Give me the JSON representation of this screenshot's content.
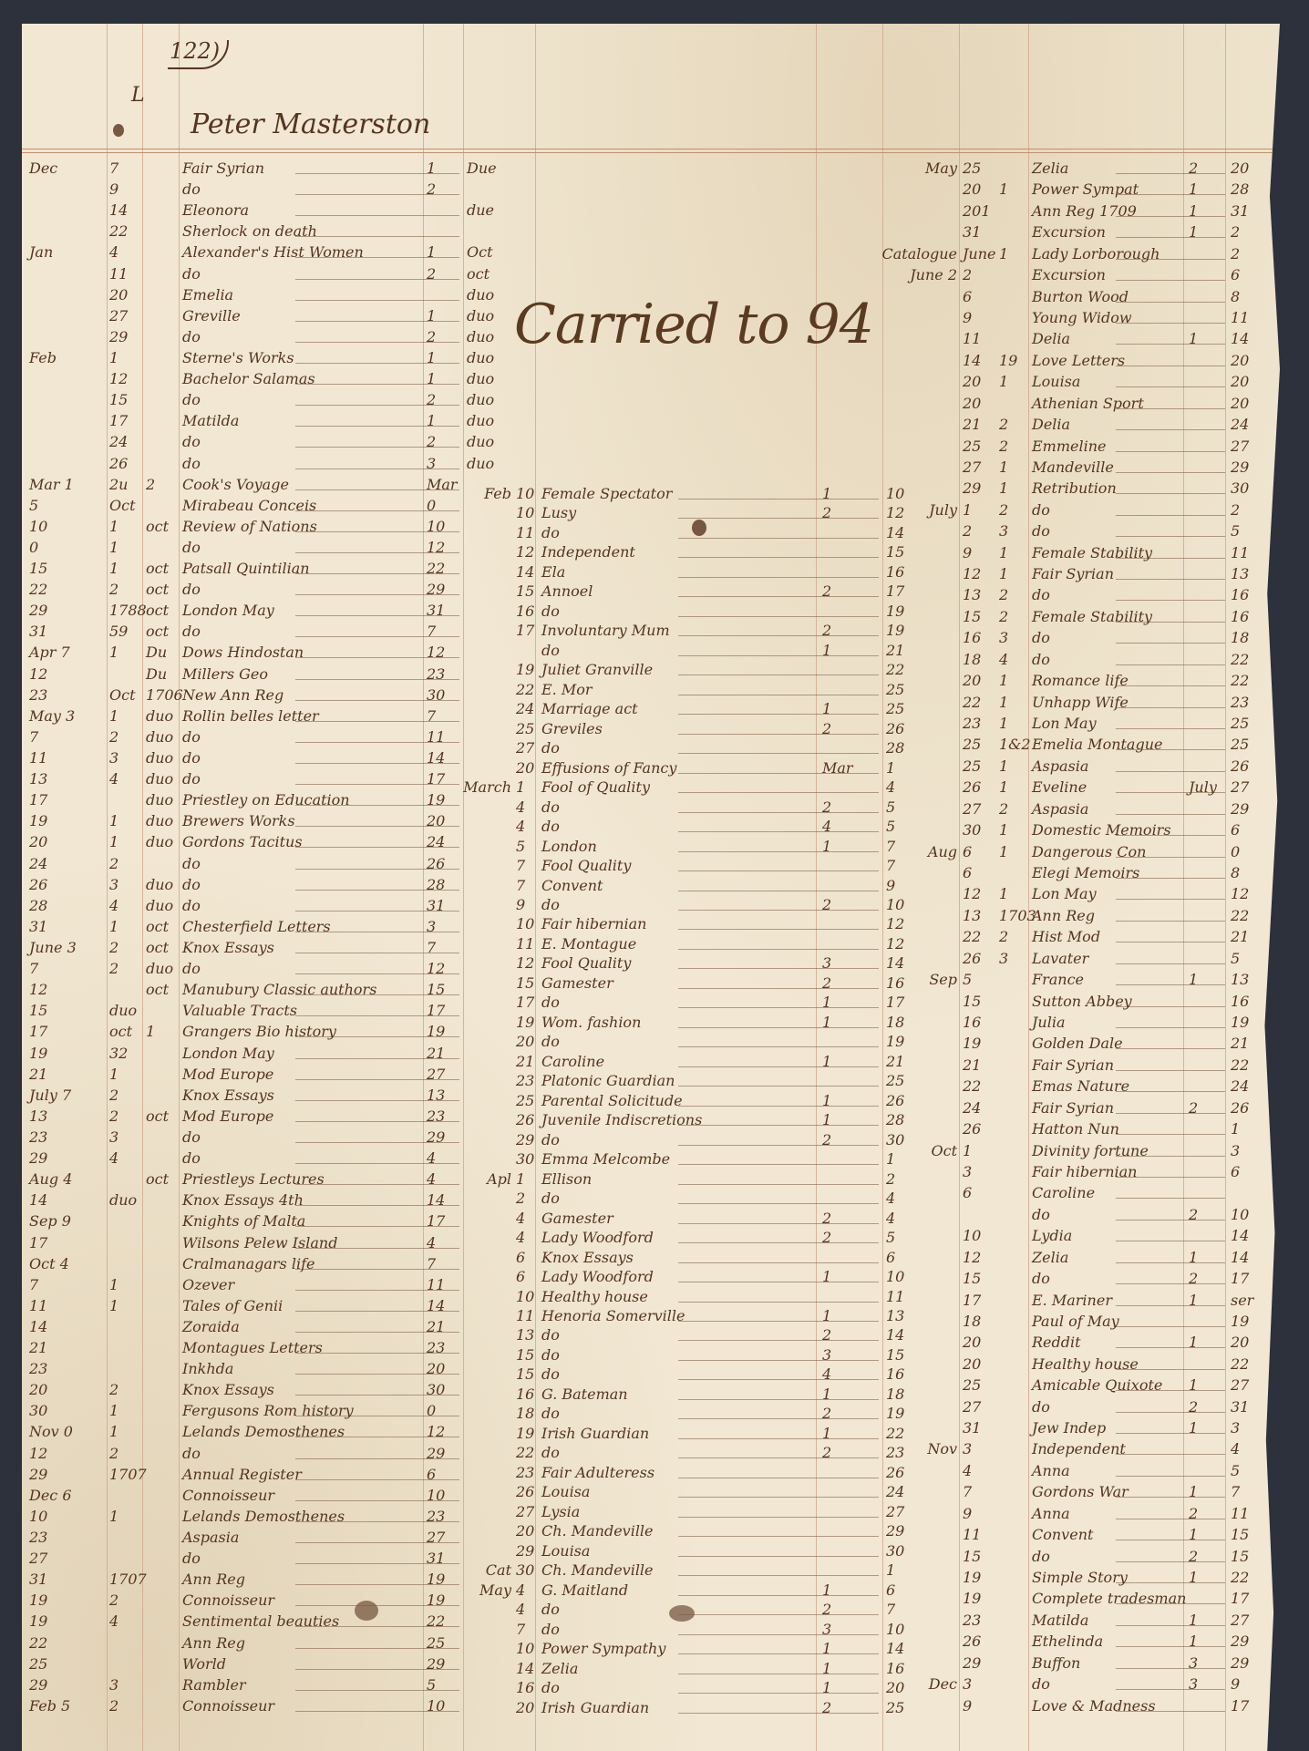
{
  "header": {
    "page_number": "122)",
    "mark": "L",
    "owner": "Peter Masterston"
  },
  "annotation": "Carried to 94",
  "left": [
    [
      "Dec",
      "7",
      "",
      "Fair Syrian",
      "1",
      "Due"
    ],
    [
      "",
      "9",
      "",
      "do",
      "2",
      ""
    ],
    [
      "",
      "14",
      "",
      "Eleonora",
      "",
      "due"
    ],
    [
      "",
      "22",
      "",
      "Sherlock on death",
      "",
      ""
    ],
    [
      "Jan",
      "4",
      "",
      "Alexander's Hist Women",
      "1",
      "Oct"
    ],
    [
      "",
      "11",
      "",
      "do",
      "2",
      "oct"
    ],
    [
      "",
      "20",
      "",
      "Emelia",
      "",
      "duo"
    ],
    [
      "",
      "27",
      "",
      "Greville",
      "1",
      "duo"
    ],
    [
      "",
      "29",
      "",
      "do",
      "2",
      "duo"
    ],
    [
      "Feb",
      "1",
      "",
      "Sterne's Works",
      "1",
      "duo"
    ],
    [
      "",
      "12",
      "",
      "Bachelor Salamas",
      "1",
      "duo"
    ],
    [
      "",
      "15",
      "",
      "do",
      "2",
      "duo"
    ],
    [
      "",
      "17",
      "",
      "Matilda",
      "1",
      "duo"
    ],
    [
      "",
      "24",
      "",
      "do",
      "2",
      "duo"
    ],
    [
      "",
      "26",
      "",
      "do",
      "3",
      "duo"
    ],
    [
      "Mar 1",
      "2u",
      "2",
      "Cook's Voyage",
      "Mar",
      ""
    ],
    [
      "5",
      "Oct",
      "",
      "Mirabeau Conceis",
      "0",
      ""
    ],
    [
      "10",
      "1",
      "oct",
      "Review of Nations",
      "10",
      ""
    ],
    [
      "0",
      "1",
      "",
      "do",
      "12",
      ""
    ],
    [
      "15",
      "1",
      "oct",
      "Patsall Quintilian",
      "22",
      ""
    ],
    [
      "22",
      "2",
      "oct",
      "do",
      "29",
      ""
    ],
    [
      "29",
      "1788",
      "oct",
      "London May",
      "31",
      ""
    ],
    [
      "31",
      "59",
      "oct",
      "do",
      "7",
      ""
    ],
    [
      "Apr 7",
      "1",
      "Du",
      "Dows Hindostan",
      "12",
      ""
    ],
    [
      "12",
      "",
      "Du",
      "Millers Geo",
      "23",
      ""
    ],
    [
      "23",
      "Oct",
      "1706",
      "New Ann Reg",
      "30",
      ""
    ],
    [
      "May 3",
      "1",
      "duo",
      "Rollin belles letter",
      "7",
      ""
    ],
    [
      "7",
      "2",
      "duo",
      "do",
      "11",
      ""
    ],
    [
      "11",
      "3",
      "duo",
      "do",
      "14",
      ""
    ],
    [
      "13",
      "4",
      "duo",
      "do",
      "17",
      ""
    ],
    [
      "17",
      "",
      "duo",
      "Priestley on Education",
      "19",
      ""
    ],
    [
      "19",
      "1",
      "duo",
      "Brewers Works",
      "20",
      ""
    ],
    [
      "20",
      "1",
      "duo",
      "Gordons Tacitus",
      "24",
      ""
    ],
    [
      "24",
      "2",
      "",
      "do",
      "26",
      ""
    ],
    [
      "26",
      "3",
      "duo",
      "do",
      "28",
      ""
    ],
    [
      "28",
      "4",
      "duo",
      "do",
      "31",
      ""
    ],
    [
      "31",
      "1",
      "oct",
      "Chesterfield Letters",
      "3",
      ""
    ],
    [
      "June 3",
      "2",
      "oct",
      "Knox Essays",
      "7",
      ""
    ],
    [
      "7",
      "2",
      "duo",
      "do",
      "12",
      ""
    ],
    [
      "12",
      "",
      "oct",
      "Manubury Classic authors",
      "15",
      ""
    ],
    [
      "15",
      "duo",
      "",
      "Valuable Tracts",
      "17",
      ""
    ],
    [
      "17",
      "oct",
      "1",
      "Grangers Bio history",
      "19",
      ""
    ],
    [
      "19",
      "32",
      "",
      "London May",
      "21",
      ""
    ],
    [
      "21",
      "1",
      "",
      "Mod Europe",
      "27",
      ""
    ],
    [
      "July 7",
      "2",
      "",
      "Knox Essays",
      "13",
      ""
    ],
    [
      "13",
      "2",
      "oct",
      "Mod Europe",
      "23",
      ""
    ],
    [
      "23",
      "3",
      "",
      "do",
      "29",
      ""
    ],
    [
      "29",
      "4",
      "",
      "do",
      "4",
      ""
    ],
    [
      "Aug 4",
      "",
      "oct",
      "Priestleys Lectures",
      "4",
      ""
    ],
    [
      "14",
      "duo",
      "",
      "Knox Essays 4th",
      "14",
      ""
    ],
    [
      "Sep 9",
      "",
      "",
      "Knights of Malta",
      "17",
      ""
    ],
    [
      "17",
      "",
      "",
      "Wilsons Pelew Island",
      "4",
      ""
    ],
    [
      "Oct 4",
      "",
      "",
      "Cralmanagars life",
      "7",
      ""
    ],
    [
      "7",
      "1",
      "",
      "Ozever",
      "11",
      ""
    ],
    [
      "11",
      "1",
      "",
      "Tales of Genii",
      "14",
      ""
    ],
    [
      "14",
      "",
      "",
      "Zoraida",
      "21",
      ""
    ],
    [
      "21",
      "",
      "",
      "Montagues Letters",
      "23",
      ""
    ],
    [
      "23",
      "",
      "",
      "Inkhda",
      "20",
      ""
    ],
    [
      "20",
      "2",
      "",
      "Knox Essays",
      "30",
      ""
    ],
    [
      "30",
      "1",
      "",
      "Fergusons Rom history",
      "0",
      ""
    ],
    [
      "Nov 0",
      "1",
      "",
      "Lelands Demosthenes",
      "12",
      ""
    ],
    [
      "12",
      "2",
      "",
      "do",
      "29",
      ""
    ],
    [
      "29",
      "1707",
      "",
      "Annual Register",
      "6",
      ""
    ],
    [
      "Dec 6",
      "",
      "",
      "Connoisseur",
      "10",
      ""
    ],
    [
      "10",
      "1",
      "",
      "Lelands Demosthenes",
      "23",
      ""
    ],
    [
      "23",
      "",
      "",
      "Aspasia",
      "27",
      ""
    ],
    [
      "27",
      "",
      "",
      "do",
      "31",
      ""
    ],
    [
      "31",
      "1707",
      "",
      "Ann Reg",
      "19",
      ""
    ],
    [
      "19",
      "2",
      "",
      "Connoisseur",
      "19",
      ""
    ],
    [
      "19",
      "4",
      "",
      "Sentimental beauties",
      "22",
      ""
    ],
    [
      "22",
      "",
      "",
      "Ann Reg",
      "25",
      ""
    ],
    [
      "25",
      "",
      "",
      "World",
      "29",
      ""
    ],
    [
      "29",
      "3",
      "",
      "Rambler",
      "5",
      ""
    ],
    [
      "Feb 5",
      "2",
      "",
      "Connoisseur",
      "10",
      ""
    ]
  ],
  "middle": [
    [
      "Feb",
      "10",
      "Female Spectator",
      "1",
      "10"
    ],
    [
      "",
      "10",
      "Lusy",
      "2",
      "12"
    ],
    [
      "",
      "11",
      "do",
      "",
      "14"
    ],
    [
      "",
      "12",
      "Independent",
      "",
      "15"
    ],
    [
      "",
      "14",
      "Ela",
      "",
      "16"
    ],
    [
      "",
      "15",
      "Annoel",
      "2",
      "17"
    ],
    [
      "",
      "16",
      "do",
      "",
      "19"
    ],
    [
      "",
      "17",
      "Involuntary Mum",
      "2",
      "19"
    ],
    [
      "",
      "",
      "do",
      "1",
      "21"
    ],
    [
      "",
      "19",
      "Juliet Granville",
      "",
      "22"
    ],
    [
      "",
      "22",
      "E. Mor",
      "",
      "25"
    ],
    [
      "",
      "24",
      "Marriage act",
      "1",
      "25"
    ],
    [
      "",
      "25",
      "Greviles",
      "2",
      "26"
    ],
    [
      "",
      "27",
      "do",
      "",
      "28"
    ],
    [
      "",
      "20",
      "Effusions of Fancy",
      "Mar",
      "1"
    ],
    [
      "March",
      "1",
      "Fool of Quality",
      "",
      "4"
    ],
    [
      "",
      "4",
      "do",
      "2",
      "5"
    ],
    [
      "",
      "4",
      "do",
      "4",
      "5"
    ],
    [
      "",
      "5",
      "London",
      "1",
      "7"
    ],
    [
      "",
      "7",
      "Fool Quality",
      "",
      "7"
    ],
    [
      "",
      "7",
      "Convent",
      "",
      "9"
    ],
    [
      "",
      "9",
      "do",
      "2",
      "10"
    ],
    [
      "",
      "10",
      "Fair hibernian",
      "",
      "12"
    ],
    [
      "",
      "11",
      "E. Montague",
      "",
      "12"
    ],
    [
      "",
      "12",
      "Fool Quality",
      "3",
      "14"
    ],
    [
      "",
      "15",
      "Gamester",
      "2",
      "16"
    ],
    [
      "",
      "17",
      "do",
      "1",
      "17"
    ],
    [
      "",
      "19",
      "Wom. fashion",
      "1",
      "18"
    ],
    [
      "",
      "20",
      "do",
      "",
      "19"
    ],
    [
      "",
      "21",
      "Caroline",
      "1",
      "21"
    ],
    [
      "",
      "23",
      "Platonic Guardian",
      "",
      "25"
    ],
    [
      "",
      "25",
      "Parental Solicitude",
      "1",
      "26"
    ],
    [
      "",
      "26",
      "Juvenile Indiscretions",
      "1",
      "28"
    ],
    [
      "",
      "29",
      "do",
      "2",
      "30"
    ],
    [
      "",
      "30",
      "Emma Melcombe",
      "",
      "1"
    ],
    [
      "Apl",
      "1",
      "Ellison",
      "",
      "2"
    ],
    [
      "",
      "2",
      "do",
      "",
      "4"
    ],
    [
      "",
      "4",
      "Gamester",
      "2",
      "4"
    ],
    [
      "",
      "4",
      "Lady Woodford",
      "2",
      "5"
    ],
    [
      "",
      "6",
      "Knox Essays",
      "",
      "6"
    ],
    [
      "",
      "6",
      "Lady Woodford",
      "1",
      "10"
    ],
    [
      "",
      "10",
      "Healthy house",
      "",
      "11"
    ],
    [
      "",
      "11",
      "Henoria Somerville",
      "1",
      "13"
    ],
    [
      "",
      "13",
      "do",
      "2",
      "14"
    ],
    [
      "",
      "15",
      "do",
      "3",
      "15"
    ],
    [
      "",
      "15",
      "do",
      "4",
      "16"
    ],
    [
      "",
      "16",
      "G. Bateman",
      "1",
      "18"
    ],
    [
      "",
      "18",
      "do",
      "2",
      "19"
    ],
    [
      "",
      "19",
      "Irish Guardian",
      "1",
      "22"
    ],
    [
      "",
      "22",
      "do",
      "2",
      "23"
    ],
    [
      "",
      "23",
      "Fair Adulteress",
      "",
      "26"
    ],
    [
      "",
      "26",
      "Louisa",
      "",
      "24"
    ],
    [
      "",
      "27",
      "Lysia",
      "",
      "27"
    ],
    [
      "",
      "20",
      "Ch. Mandeville",
      "",
      "29"
    ],
    [
      "",
      "29",
      "Louisa",
      "",
      "30"
    ],
    [
      "Cat",
      "30",
      "Ch. Mandeville",
      "",
      "1"
    ],
    [
      "May",
      "4",
      "G. Maitland",
      "1",
      "6"
    ],
    [
      "",
      "4",
      "do",
      "2",
      "7"
    ],
    [
      "",
      "7",
      "do",
      "3",
      "10"
    ],
    [
      "",
      "10",
      "Power Sympathy",
      "1",
      "14"
    ],
    [
      "",
      "14",
      "Zelia",
      "1",
      "16"
    ],
    [
      "",
      "16",
      "do",
      "1",
      "20"
    ],
    [
      "",
      "20",
      "Irish Guardian",
      "2",
      "25"
    ]
  ],
  "right": [
    [
      "May",
      "25",
      "",
      "Zelia",
      "2",
      "20"
    ],
    [
      "",
      "20",
      "1",
      "Power Sympat",
      "1",
      "28"
    ],
    [
      "",
      "201",
      "",
      "Ann Reg 1709",
      "1",
      "31"
    ],
    [
      "",
      "31",
      "",
      "Excursion",
      "1",
      "2"
    ],
    [
      "Catalogue",
      "June",
      "1",
      "Lady Lorborough",
      "",
      "2"
    ],
    [
      "June 2",
      "2",
      "",
      "Excursion",
      "",
      "6"
    ],
    [
      "",
      "6",
      "",
      "Burton Wood",
      "",
      "8"
    ],
    [
      "",
      "9",
      "",
      "Young Widow",
      "",
      "11"
    ],
    [
      "",
      "11",
      "",
      "Delia",
      "1",
      "14"
    ],
    [
      "",
      "14",
      "19",
      "Love Letters",
      "",
      "20"
    ],
    [
      "",
      "20",
      "1",
      "Louisa",
      "",
      "20"
    ],
    [
      "",
      "20",
      "",
      "Athenian Sport",
      "",
      "20"
    ],
    [
      "",
      "21",
      "2",
      "Delia",
      "",
      "24"
    ],
    [
      "",
      "25",
      "2",
      "Emmeline",
      "",
      "27"
    ],
    [
      "",
      "27",
      "1",
      "Mandeville",
      "",
      "29"
    ],
    [
      "",
      "29",
      "1",
      "Retribution",
      "",
      "30"
    ],
    [
      "July",
      "1",
      "2",
      "do",
      "",
      "2"
    ],
    [
      "",
      "2",
      "3",
      "do",
      "",
      "5"
    ],
    [
      "",
      "9",
      "1",
      "Female Stability",
      "",
      "11"
    ],
    [
      "",
      "12",
      "1",
      "Fair Syrian",
      "",
      "13"
    ],
    [
      "",
      "13",
      "2",
      "do",
      "",
      "16"
    ],
    [
      "",
      "15",
      "2",
      "Female Stability",
      "",
      "16"
    ],
    [
      "",
      "16",
      "3",
      "do",
      "",
      "18"
    ],
    [
      "",
      "18",
      "4",
      "do",
      "",
      "22"
    ],
    [
      "",
      "20",
      "1",
      "Romance life",
      "",
      "22"
    ],
    [
      "",
      "22",
      "1",
      "Unhapp Wife",
      "",
      "23"
    ],
    [
      "",
      "23",
      "1",
      "Lon May",
      "",
      "25"
    ],
    [
      "",
      "25",
      "1&2",
      "Emelia Montague",
      "",
      "25"
    ],
    [
      "",
      "25",
      "1",
      "Aspasia",
      "",
      "26"
    ],
    [
      "",
      "26",
      "1",
      "Eveline",
      "July",
      "27"
    ],
    [
      "",
      "27",
      "2",
      "Aspasia",
      "",
      "29"
    ],
    [
      "",
      "30",
      "1",
      "Domestic Memoirs",
      "",
      "6"
    ],
    [
      "Aug",
      "6",
      "1",
      "Dangerous Con",
      "",
      "0"
    ],
    [
      "",
      "6",
      "",
      "Elegi Memoirs",
      "",
      "8"
    ],
    [
      "",
      "12",
      "1",
      "Lon May",
      "",
      "12"
    ],
    [
      "",
      "13",
      "1703",
      "Ann Reg",
      "",
      "22"
    ],
    [
      "",
      "22",
      "2",
      "Hist Mod",
      "",
      "21"
    ],
    [
      "",
      "26",
      "3",
      "Lavater",
      "",
      "5"
    ],
    [
      "Sep",
      "5",
      "",
      "France",
      "1",
      "13"
    ],
    [
      "",
      "15",
      "",
      "Sutton Abbey",
      "",
      "16"
    ],
    [
      "",
      "16",
      "",
      "Julia",
      "",
      "19"
    ],
    [
      "",
      "19",
      "",
      "Golden Dale",
      "",
      "21"
    ],
    [
      "",
      "21",
      "",
      "Fair Syrian",
      "",
      "22"
    ],
    [
      "",
      "22",
      "",
      "Emas Nature",
      "",
      "24"
    ],
    [
      "",
      "24",
      "",
      "Fair Syrian",
      "2",
      "26"
    ],
    [
      "",
      "26",
      "",
      "Hatton Nun",
      "",
      "1"
    ],
    [
      "Oct",
      "1",
      "",
      "Divinity fortune",
      "",
      "3"
    ],
    [
      "",
      "3",
      "",
      "Fair hibernian",
      "",
      "6"
    ],
    [
      "",
      "6",
      "",
      "Caroline",
      "",
      ""
    ],
    [
      "",
      "",
      "",
      "do",
      "2",
      "10"
    ],
    [
      "",
      "10",
      "",
      "Lydia",
      "",
      "14"
    ],
    [
      "",
      "12",
      "",
      "Zelia",
      "1",
      "14"
    ],
    [
      "",
      "15",
      "",
      "do",
      "2",
      "17"
    ],
    [
      "",
      "17",
      "",
      "E. Mariner",
      "1",
      "ser"
    ],
    [
      "",
      "18",
      "",
      "Paul of May",
      "",
      "19"
    ],
    [
      "",
      "20",
      "",
      "Reddit",
      "1",
      "20"
    ],
    [
      "",
      "20",
      "",
      "Healthy house",
      "",
      "22"
    ],
    [
      "",
      "25",
      "",
      "Amicable Quixote",
      "1",
      "27"
    ],
    [
      "",
      "27",
      "",
      "do",
      "2",
      "31"
    ],
    [
      "",
      "31",
      "",
      "Jew Indep",
      "1",
      "3"
    ],
    [
      "Nov",
      "3",
      "",
      "Independent",
      "",
      "4"
    ],
    [
      "",
      "4",
      "",
      "Anna",
      "",
      "5"
    ],
    [
      "",
      "7",
      "",
      "Gordons War",
      "1",
      "7"
    ],
    [
      "",
      "9",
      "",
      "Anna",
      "2",
      "11"
    ],
    [
      "",
      "11",
      "",
      "Convent",
      "1",
      "15"
    ],
    [
      "",
      "15",
      "",
      "do",
      "2",
      "15"
    ],
    [
      "",
      "19",
      "",
      "Simple Story",
      "1",
      "22"
    ],
    [
      "",
      "19",
      "",
      "Complete tradesman",
      "",
      "17"
    ],
    [
      "",
      "23",
      "",
      "Matilda",
      "1",
      "27"
    ],
    [
      "",
      "26",
      "",
      "Ethelinda",
      "1",
      "29"
    ],
    [
      "",
      "29",
      "",
      "Buffon",
      "3",
      "29"
    ],
    [
      "Dec",
      "3",
      "",
      "do",
      "3",
      "9"
    ],
    [
      "",
      "9",
      "",
      "Love & Madness",
      "",
      "17"
    ]
  ],
  "colors": {
    "paper": "#f1e7d2",
    "ink": "#553520",
    "rule": "#cfa68c",
    "background": "#2c313c"
  }
}
